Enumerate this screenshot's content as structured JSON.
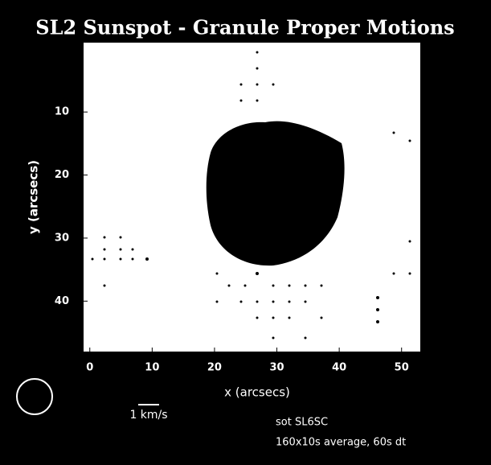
{
  "chart_data": {
    "type": "image",
    "title": "SL2 Sunspot - Granule Proper Motions",
    "xlabel": "x (arcsecs)",
    "ylabel": "y (arcsecs)",
    "xlim": [
      -1,
      53
    ],
    "ylim": [
      -1,
      48
    ],
    "y_inverted": true,
    "xticks": [
      0,
      10,
      20,
      30,
      40,
      50
    ],
    "yticks": [
      10,
      20,
      30,
      40
    ],
    "scale_label": "1 km/s",
    "annotations": [
      "sot SL6SC",
      "160x10s average, 60s dt"
    ]
  }
}
